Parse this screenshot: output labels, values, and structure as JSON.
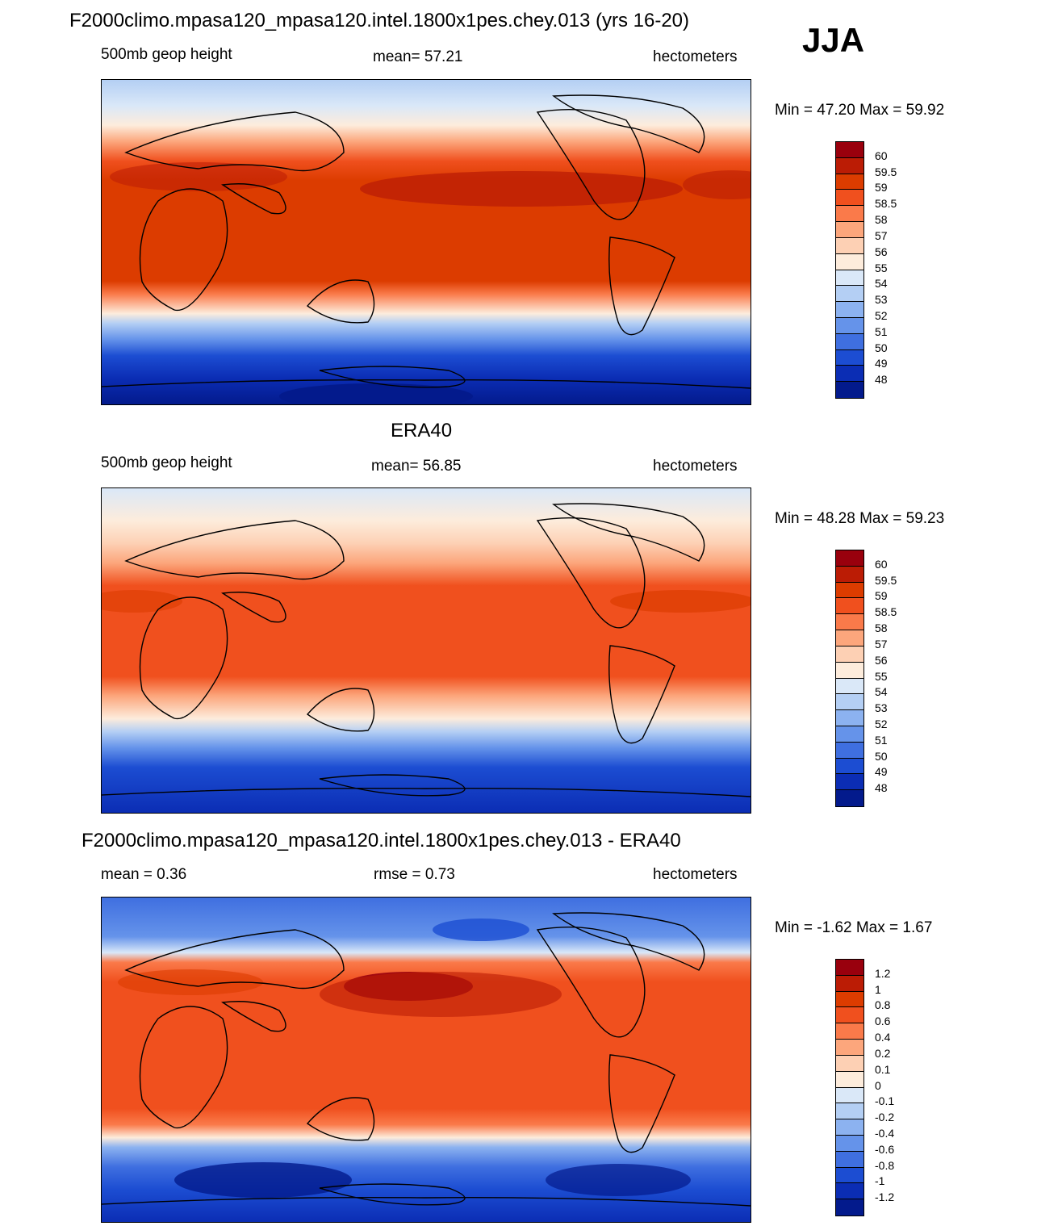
{
  "season": "JJA",
  "palettes": {
    "height": [
      "#99000d",
      "#bb1c05",
      "#dc3c00",
      "#f0501e",
      "#fa7a4a",
      "#fca67c",
      "#fdd0b4",
      "#fdecdc",
      "#dae8f8",
      "#b4cff4",
      "#8cb2f0",
      "#6593ea",
      "#3f6fe0",
      "#1c4dd2",
      "#0b2db4",
      "#031a8c"
    ],
    "diff": [
      "#99000d",
      "#bb1c05",
      "#dc3c00",
      "#f0501e",
      "#fa7a4a",
      "#fca67c",
      "#fdd0b4",
      "#fdecdc",
      "#dae8f8",
      "#b4cff4",
      "#8cb2f0",
      "#6593ea",
      "#3f6fe0",
      "#1c4dd2",
      "#0b2db4",
      "#031a8c"
    ]
  },
  "panels": [
    {
      "title": "F2000climo.mpasa120_mpasa120.intel.1800x1pes.chey.013 (yrs 16-20)",
      "left_label": "500mb geop height",
      "center_label": "mean=  57.21",
      "right_label": "hectometers",
      "minmax": "Min =  47.20 Max =  59.92",
      "colorbar_labels": [
        "60",
        "59.5",
        "59",
        "58.5",
        "58",
        "57",
        "56",
        "55",
        "54",
        "53",
        "52",
        "51",
        "50",
        "49",
        "48"
      ]
    },
    {
      "title": "ERA40",
      "left_label": "500mb geop height",
      "center_label": "mean=  56.85",
      "right_label": "hectometers",
      "minmax": "Min =  48.28 Max =  59.23",
      "colorbar_labels": [
        "60",
        "59.5",
        "59",
        "58.5",
        "58",
        "57",
        "56",
        "55",
        "54",
        "53",
        "52",
        "51",
        "50",
        "49",
        "48"
      ]
    },
    {
      "title": "F2000climo.mpasa120_mpasa120.intel.1800x1pes.chey.013 - ERA40",
      "left_label": "mean =   0.36",
      "center_label": "rmse =   0.73",
      "right_label": "hectometers",
      "minmax": "Min =  -1.62 Max =   1.67",
      "colorbar_labels": [
        "1.2",
        "1",
        "0.8",
        "0.6",
        "0.4",
        "0.2",
        "0.1",
        "0",
        "-0.1",
        "-0.2",
        "-0.4",
        "-0.6",
        "-0.8",
        "-1",
        "-1.2"
      ]
    }
  ]
}
